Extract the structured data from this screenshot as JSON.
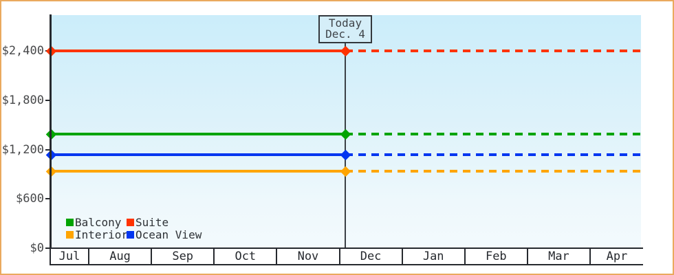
{
  "frame": {
    "border_color": "#eaa95e"
  },
  "today_marker": {
    "line1": "Today",
    "line2": "Dec. 4"
  },
  "y_axis": {
    "ticks": [
      {
        "label": "$2,400",
        "value": 2400
      },
      {
        "label": "$1,800",
        "value": 1800
      },
      {
        "label": "$1,200",
        "value": 1200
      },
      {
        "label": "$600",
        "value": 600
      },
      {
        "label": "$0",
        "value": 0
      }
    ]
  },
  "x_axis": {
    "months": [
      "Jul",
      "Aug",
      "Sep",
      "Oct",
      "Nov",
      "Dec",
      "Jan",
      "Feb",
      "Mar",
      "Apr"
    ]
  },
  "legend": {
    "rows": [
      [
        {
          "label": "Balcony",
          "color": "#02a402"
        },
        {
          "label": "Suite",
          "color": "#ff3300"
        }
      ],
      [
        {
          "label": "Interior",
          "color": "#ffa502"
        },
        {
          "label": "Ocean View",
          "color": "#0336f0"
        }
      ]
    ]
  },
  "chart_data": {
    "type": "line",
    "title": "",
    "xlabel": "",
    "ylabel": "",
    "x_categories": [
      "Jul",
      "Aug",
      "Sep",
      "Oct",
      "Nov",
      "Dec",
      "Jan",
      "Feb",
      "Mar",
      "Apr"
    ],
    "ylim": [
      0,
      2880
    ],
    "y_ticks": [
      0,
      600,
      1200,
      1800,
      2400
    ],
    "today": {
      "label": "Today",
      "date": "Dec. 4"
    },
    "series": [
      {
        "name": "Suite",
        "color": "#ff3300",
        "value": 2400,
        "style_before_today": "solid",
        "style_after_today": "dashed"
      },
      {
        "name": "Balcony",
        "color": "#02a402",
        "value": 1390,
        "style_before_today": "solid",
        "style_after_today": "dashed"
      },
      {
        "name": "Ocean View",
        "color": "#0336f0",
        "value": 1140,
        "style_before_today": "solid",
        "style_after_today": "dashed"
      },
      {
        "name": "Interior",
        "color": "#ffa502",
        "value": 940,
        "style_before_today": "solid",
        "style_after_today": "dashed"
      }
    ],
    "legend_position": "bottom-left",
    "grid": false
  }
}
